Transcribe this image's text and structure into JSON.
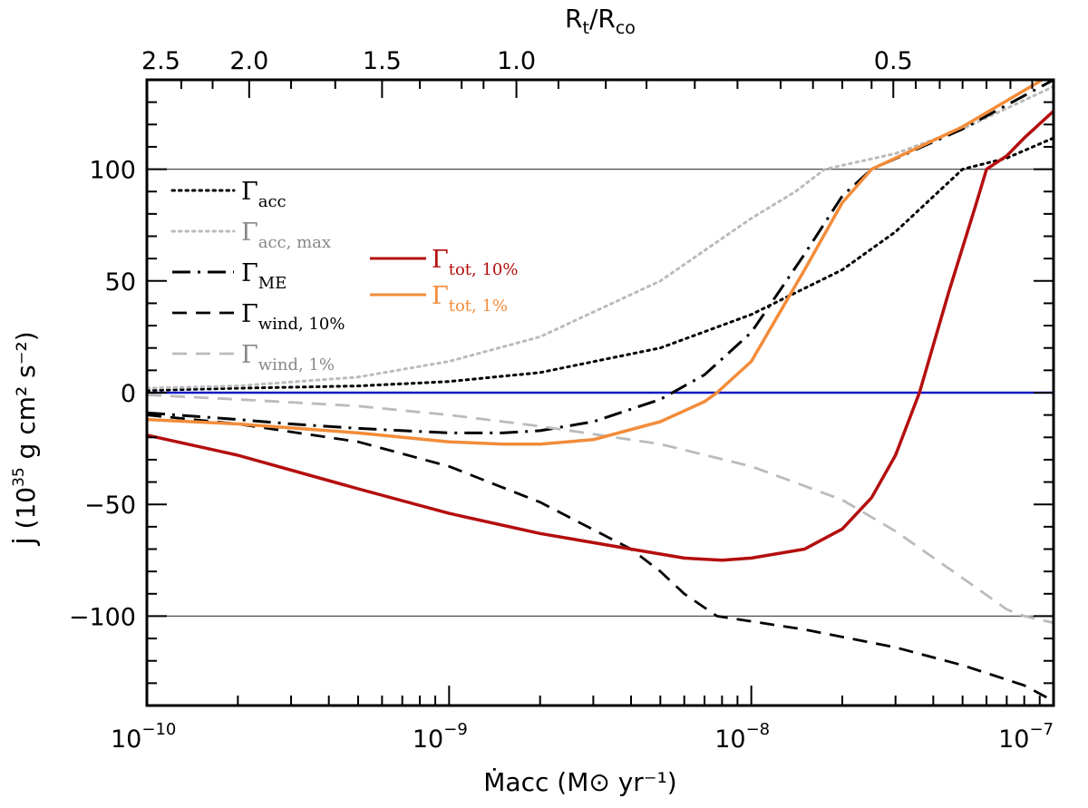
{
  "chart_data": {
    "type": "line",
    "x_axis": {
      "label": "Ṁacc",
      "units": "(M⊙ yr⁻¹)",
      "scale": "log",
      "range": [
        1e-10,
        1e-07
      ],
      "tick_values": [
        1e-10,
        1e-09,
        1e-08,
        1e-07
      ],
      "tick_labels": [
        {
          "base": "10",
          "exp": "−10"
        },
        {
          "base": "10",
          "exp": "−9"
        },
        {
          "base": "10",
          "exp": "−8"
        },
        {
          "base": "10",
          "exp": "−7"
        }
      ]
    },
    "top_axis": {
      "label_main": "R",
      "label_sub1": "t",
      "label_slash": "/R",
      "label_sub2": "co",
      "tick_labels": [
        "2.5",
        "2.0",
        "1.5",
        "1.0",
        "0.5"
      ],
      "tick_positions_mdot": [
        1e-10,
        2.18e-10,
        6e-10,
        1.67e-09,
        2.95e-08
      ]
    },
    "y_axis": {
      "label": "J̇",
      "units_prefix": "(10",
      "units_exp": "35",
      "units_suffix": " g cm² s⁻²)",
      "range": [
        -140,
        140
      ],
      "tick_values": [
        -100,
        -50,
        0,
        50,
        100
      ],
      "tick_labels": [
        "−100",
        "−50",
        "0",
        "50",
        "100"
      ]
    },
    "reference_lines": [
      {
        "y": 100,
        "color": "#555555"
      },
      {
        "y": -100,
        "color": "#555555"
      },
      {
        "y": 0,
        "color": "#1018c8"
      }
    ],
    "series": [
      {
        "name": "Γacc",
        "base": "Γ",
        "sub": "acc",
        "color": "#000000",
        "dash": "dotted",
        "legend_color": "#000000",
        "x": [
          1e-10,
          2e-10,
          5e-10,
          1e-09,
          2e-09,
          5e-09,
          1e-08,
          2e-08,
          3e-08,
          5e-08,
          7e-08,
          1e-07
        ],
        "y": [
          1,
          2,
          3,
          5,
          9,
          20,
          35,
          55,
          72,
          100,
          105,
          114
        ]
      },
      {
        "name": "Γacc, max",
        "base": "Γ",
        "sub": "acc, max",
        "color": "#bbbbbb",
        "dash": "dotted",
        "legend_color": "#888888",
        "x": [
          1e-10,
          2e-10,
          5e-10,
          1e-09,
          2e-09,
          5e-09,
          1e-08,
          1.4e-08,
          1.75e-08,
          3e-08,
          5e-08,
          1e-07
        ],
        "y": [
          2,
          3,
          7,
          14,
          25,
          50,
          78,
          90,
          100,
          107,
          118,
          137
        ]
      },
      {
        "name": "ΓME",
        "base": "Γ",
        "sub": "ME",
        "color": "#000000",
        "dash": "dashdot",
        "legend_color": "#000000",
        "x": [
          1e-10,
          2e-10,
          3e-10,
          5e-10,
          1e-09,
          1.5e-09,
          2e-09,
          3e-09,
          5e-09,
          7e-09,
          1e-08,
          1.5e-08,
          2e-08,
          2.5e-08,
          5e-08,
          1e-07
        ],
        "y": [
          -9,
          -12,
          -14,
          -16,
          -18,
          -18,
          -17,
          -13,
          -3,
          8,
          27,
          62,
          88,
          100,
          118,
          140
        ]
      },
      {
        "name": "Γwind, 10%",
        "base": "Γ",
        "sub": "wind, 10%",
        "color": "#000000",
        "dash": "dashed",
        "legend_color": "#000000",
        "x": [
          1e-10,
          2e-10,
          5e-10,
          1e-09,
          2e-09,
          4e-09,
          5e-09,
          6e-09,
          7.7e-09,
          1.5e-08,
          3e-08,
          5e-08,
          8e-08,
          1e-07
        ],
        "y": [
          -10,
          -14,
          -22,
          -33,
          -49,
          -70,
          -80,
          -90,
          -100,
          -106,
          -114,
          -122,
          -131,
          -138
        ]
      },
      {
        "name": "Γwind, 1%",
        "base": "Γ",
        "sub": "wind, 1%",
        "color": "#bbbbbb",
        "dash": "dashed",
        "legend_color": "#888888",
        "x": [
          1e-10,
          2e-10,
          5e-10,
          1e-09,
          2e-09,
          5e-09,
          1e-08,
          2e-08,
          3e-08,
          5e-08,
          7e-08,
          8e-08,
          1e-07
        ],
        "y": [
          -1,
          -3,
          -6,
          -10,
          -15,
          -23,
          -33,
          -48,
          -62,
          -83,
          -97,
          -100,
          -103
        ]
      },
      {
        "name": "Γtot, 10%",
        "base": "Γ",
        "sub": "tot, 10%",
        "color": "#b40e0e",
        "dash": "solid",
        "legend_color": "#b40e0e",
        "in_legend2": true,
        "x": [
          1e-10,
          2e-10,
          5e-10,
          1e-09,
          2e-09,
          4e-09,
          6e-09,
          8e-09,
          1e-08,
          1.5e-08,
          2e-08,
          2.5e-08,
          3e-08,
          3.6e-08,
          4.5e-08,
          5.5e-08,
          6e-08,
          7e-08,
          8e-08,
          1e-07
        ],
        "y": [
          -19,
          -28,
          -43,
          -54,
          -63,
          -70,
          -74,
          -75,
          -74,
          -70,
          -61,
          -47,
          -28,
          0,
          45,
          83,
          100,
          106,
          114,
          126
        ]
      },
      {
        "name": "Γtot, 1%",
        "base": "Γ",
        "sub": "tot, 1%",
        "color": "#f28c3a",
        "dash": "solid",
        "legend_color": "#f28c3a",
        "in_legend2": true,
        "x": [
          1e-10,
          2e-10,
          5e-10,
          1e-09,
          1.5e-09,
          2e-09,
          3e-09,
          5e-09,
          7e-09,
          7.7e-09,
          1e-08,
          1.5e-08,
          2e-08,
          2.5e-08,
          5e-08,
          1e-07
        ],
        "y": [
          -12,
          -14,
          -18,
          -22,
          -23,
          -23,
          -21,
          -13,
          -4,
          0,
          14,
          55,
          85,
          100,
          119,
          143
        ]
      }
    ]
  }
}
